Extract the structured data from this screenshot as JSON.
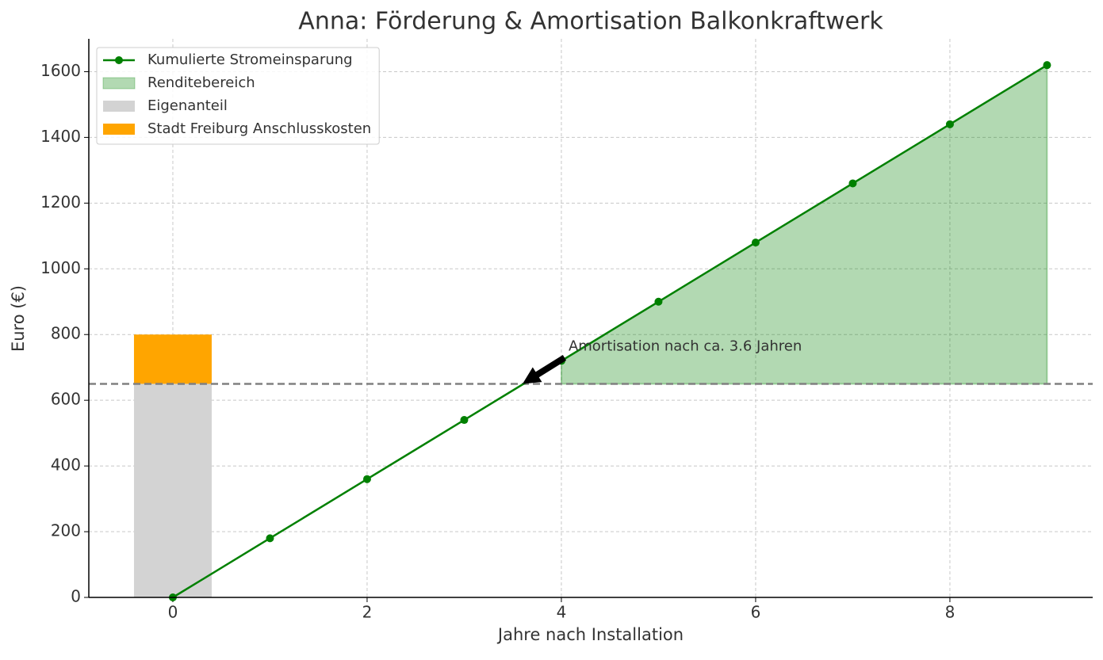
{
  "chart_data": {
    "type": "line",
    "title": "Anna: Förderung & Amortisation Balkonkraftwerk",
    "xlabel": "Jahre nach Installation",
    "ylabel": "Euro (€)",
    "x": [
      0,
      1,
      2,
      3,
      4,
      5,
      6,
      7,
      8,
      9
    ],
    "series": [
      {
        "name": "Kumulierte Stromeinsparung",
        "color": "#008000",
        "values": [
          0,
          180,
          360,
          540,
          720,
          900,
          1080,
          1260,
          1440,
          1620
        ]
      }
    ],
    "fill": {
      "name": "Renditebereich",
      "color": "#008000",
      "opacity": 0.3
    },
    "bars": [
      {
        "name": "Eigenanteil",
        "color": "#d3d3d3",
        "x": 0,
        "value": 650
      },
      {
        "name": "Stadt Freiburg Anschlusskosten",
        "color": "#ffa500",
        "x": 0,
        "value": 150
      }
    ],
    "hline": {
      "value": 650,
      "color": "#808080"
    },
    "annotation": {
      "text": "Amortisation nach ca. 3.6 Jahren",
      "x": 3.6,
      "y": 650
    },
    "xlim": [
      -0.865,
      9.47
    ],
    "ylim": [
      0,
      1700
    ],
    "xticks": [
      0,
      2,
      4,
      6,
      8
    ],
    "yticks": [
      0,
      200,
      400,
      600,
      800,
      1000,
      1200,
      1400,
      1600
    ],
    "grid": true,
    "legend": "upper left"
  }
}
